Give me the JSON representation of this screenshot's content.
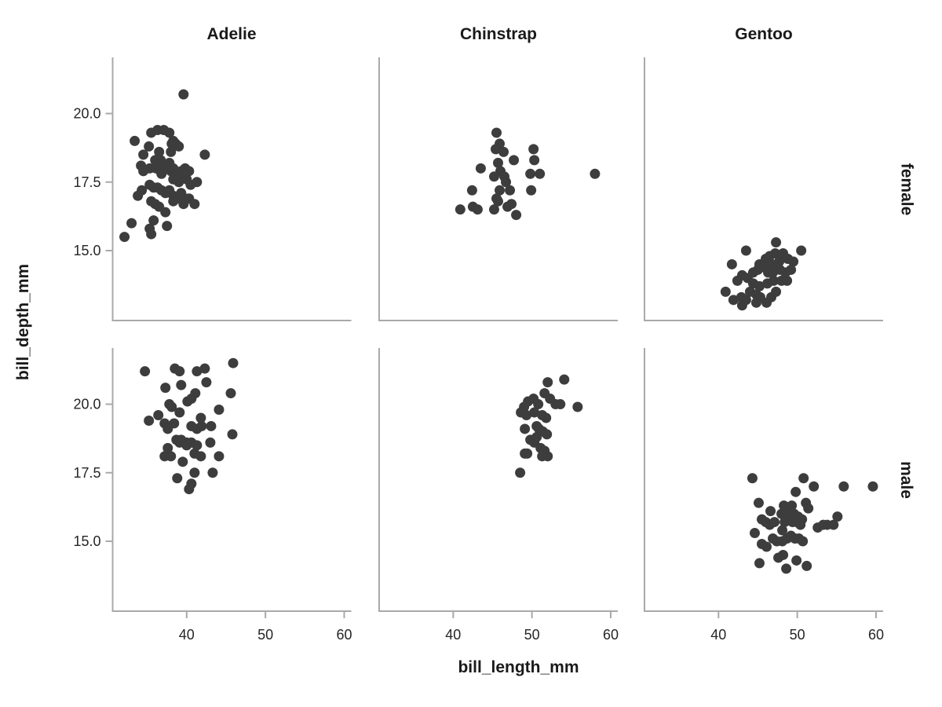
{
  "chart_data": {
    "type": "scatter",
    "title": "",
    "xlabel": "bill_length_mm",
    "ylabel": "bill_depth_mm",
    "facet_columns": [
      "Adelie",
      "Chinstrap",
      "Gentoo"
    ],
    "facet_rows": [
      "female",
      "male"
    ],
    "x_ticks": [
      40,
      50,
      60
    ],
    "x_tick_labels": [
      "40",
      "50",
      "60"
    ],
    "y_ticks": [
      15.0,
      17.5,
      20.0
    ],
    "y_tick_labels": [
      "15.0",
      "17.5",
      "20.0"
    ],
    "xlim": [
      30.6,
      60.9
    ],
    "ylim": [
      12.45,
      22.05
    ],
    "grid": "off",
    "legend": "none",
    "point_color": "#3d3d3d",
    "axis_color": "#a9a9a9",
    "panels": [
      {
        "species": "Adelie",
        "sex": "female",
        "points": [
          [
            39.6,
            20.7
          ],
          [
            33.4,
            19.0
          ],
          [
            35.5,
            19.3
          ],
          [
            36.3,
            19.4
          ],
          [
            37.1,
            19.4
          ],
          [
            37.8,
            19.3
          ],
          [
            35.2,
            18.8
          ],
          [
            38.3,
            19.0
          ],
          [
            38.6,
            18.9
          ],
          [
            39.0,
            18.8
          ],
          [
            34.5,
            18.5
          ],
          [
            36.5,
            18.6
          ],
          [
            36.0,
            18.3
          ],
          [
            36.7,
            18.3
          ],
          [
            38.1,
            18.9
          ],
          [
            38.0,
            18.6
          ],
          [
            37.8,
            18.2
          ],
          [
            42.3,
            18.5
          ],
          [
            34.2,
            18.1
          ],
          [
            34.5,
            17.9
          ],
          [
            35.3,
            18.0
          ],
          [
            36.1,
            18.0
          ],
          [
            36.7,
            17.9
          ],
          [
            37.1,
            18.0
          ],
          [
            36.8,
            17.8
          ],
          [
            38.0,
            17.9
          ],
          [
            38.3,
            18.0
          ],
          [
            38.6,
            17.7
          ],
          [
            39.3,
            17.9
          ],
          [
            39.8,
            18.0
          ],
          [
            40.3,
            17.9
          ],
          [
            39.5,
            17.7
          ],
          [
            40.0,
            17.6
          ],
          [
            39.0,
            17.5
          ],
          [
            38.3,
            17.6
          ],
          [
            41.3,
            17.5
          ],
          [
            40.5,
            17.4
          ],
          [
            33.8,
            17.0
          ],
          [
            34.3,
            17.2
          ],
          [
            35.3,
            17.4
          ],
          [
            35.8,
            17.3
          ],
          [
            36.3,
            17.3
          ],
          [
            36.8,
            17.2
          ],
          [
            37.3,
            17.1
          ],
          [
            37.8,
            17.2
          ],
          [
            38.3,
            17.0
          ],
          [
            38.8,
            16.9
          ],
          [
            39.3,
            17.1
          ],
          [
            39.8,
            16.9
          ],
          [
            40.3,
            16.9
          ],
          [
            41.0,
            16.7
          ],
          [
            39.6,
            16.7
          ],
          [
            38.3,
            16.8
          ],
          [
            37.3,
            16.4
          ],
          [
            36.5,
            16.6
          ],
          [
            36.0,
            16.7
          ],
          [
            35.5,
            16.8
          ],
          [
            33.0,
            16.0
          ],
          [
            35.3,
            15.8
          ],
          [
            35.8,
            16.1
          ],
          [
            37.5,
            15.9
          ],
          [
            35.5,
            15.6
          ],
          [
            32.1,
            15.5
          ]
        ]
      },
      {
        "species": "Chinstrap",
        "sex": "female",
        "points": [
          [
            45.5,
            19.3
          ],
          [
            45.9,
            18.9
          ],
          [
            45.4,
            18.7
          ],
          [
            46.4,
            18.6
          ],
          [
            50.2,
            18.7
          ],
          [
            50.3,
            18.3
          ],
          [
            47.7,
            18.3
          ],
          [
            43.5,
            18.0
          ],
          [
            45.7,
            18.2
          ],
          [
            46.0,
            17.9
          ],
          [
            45.2,
            17.7
          ],
          [
            46.5,
            17.7
          ],
          [
            46.7,
            17.5
          ],
          [
            49.8,
            17.8
          ],
          [
            51.0,
            17.8
          ],
          [
            58.0,
            17.8
          ],
          [
            45.9,
            17.2
          ],
          [
            47.2,
            17.2
          ],
          [
            49.9,
            17.2
          ],
          [
            42.4,
            17.2
          ],
          [
            45.5,
            16.9
          ],
          [
            45.7,
            16.8
          ],
          [
            40.9,
            16.5
          ],
          [
            42.5,
            16.6
          ],
          [
            43.1,
            16.5
          ],
          [
            45.2,
            16.5
          ],
          [
            46.9,
            16.6
          ],
          [
            47.4,
            16.7
          ],
          [
            48.0,
            16.3
          ]
        ]
      },
      {
        "species": "Gentoo",
        "sex": "female",
        "points": [
          [
            47.3,
            15.3
          ],
          [
            43.5,
            15.0
          ],
          [
            50.5,
            15.0
          ],
          [
            41.7,
            14.5
          ],
          [
            44.4,
            14.2
          ],
          [
            45.2,
            14.5
          ],
          [
            46.0,
            14.7
          ],
          [
            46.5,
            14.8
          ],
          [
            47.2,
            14.9
          ],
          [
            48.2,
            14.9
          ],
          [
            48.8,
            14.7
          ],
          [
            49.5,
            14.6
          ],
          [
            47.7,
            14.6
          ],
          [
            46.8,
            14.5
          ],
          [
            45.7,
            14.4
          ],
          [
            45.0,
            14.3
          ],
          [
            46.3,
            14.2
          ],
          [
            46.9,
            14.2
          ],
          [
            47.8,
            14.3
          ],
          [
            48.5,
            14.2
          ],
          [
            49.2,
            14.3
          ],
          [
            43.0,
            14.1
          ],
          [
            43.7,
            14.0
          ],
          [
            42.4,
            13.9
          ],
          [
            44.4,
            13.8
          ],
          [
            45.2,
            13.7
          ],
          [
            46.2,
            13.8
          ],
          [
            47.0,
            13.9
          ],
          [
            48.0,
            13.9
          ],
          [
            48.7,
            13.9
          ],
          [
            40.9,
            13.5
          ],
          [
            41.9,
            13.2
          ],
          [
            42.9,
            13.3
          ],
          [
            43.5,
            13.2
          ],
          [
            44.0,
            13.5
          ],
          [
            44.8,
            13.4
          ],
          [
            45.3,
            13.3
          ],
          [
            46.7,
            13.3
          ],
          [
            47.3,
            13.5
          ],
          [
            43.0,
            13.0
          ],
          [
            44.8,
            13.1
          ],
          [
            46.1,
            13.1
          ]
        ]
      },
      {
        "species": "Adelie",
        "sex": "male",
        "points": [
          [
            45.9,
            21.5
          ],
          [
            34.7,
            21.2
          ],
          [
            38.5,
            21.3
          ],
          [
            39.1,
            21.2
          ],
          [
            41.3,
            21.2
          ],
          [
            42.3,
            21.3
          ],
          [
            37.3,
            20.6
          ],
          [
            39.3,
            20.7
          ],
          [
            42.5,
            20.8
          ],
          [
            45.6,
            20.4
          ],
          [
            37.8,
            20.0
          ],
          [
            38.1,
            19.9
          ],
          [
            40.1,
            20.1
          ],
          [
            40.6,
            20.2
          ],
          [
            41.1,
            20.4
          ],
          [
            35.2,
            19.4
          ],
          [
            36.4,
            19.6
          ],
          [
            37.2,
            19.3
          ],
          [
            38.4,
            19.3
          ],
          [
            39.1,
            19.7
          ],
          [
            41.8,
            19.5
          ],
          [
            44.1,
            19.8
          ],
          [
            41.9,
            19.2
          ],
          [
            43.1,
            19.2
          ],
          [
            41.3,
            19.1
          ],
          [
            40.6,
            19.2
          ],
          [
            37.6,
            19.1
          ],
          [
            38.7,
            18.7
          ],
          [
            39.3,
            18.7
          ],
          [
            40.0,
            18.6
          ],
          [
            40.6,
            18.6
          ],
          [
            41.3,
            18.5
          ],
          [
            40.0,
            18.5
          ],
          [
            39.1,
            18.6
          ],
          [
            43.0,
            18.6
          ],
          [
            45.8,
            18.9
          ],
          [
            37.6,
            18.4
          ],
          [
            37.2,
            18.1
          ],
          [
            38.0,
            18.1
          ],
          [
            39.5,
            17.9
          ],
          [
            41.0,
            18.2
          ],
          [
            41.8,
            18.1
          ],
          [
            44.1,
            18.1
          ],
          [
            43.3,
            17.5
          ],
          [
            41.0,
            17.5
          ],
          [
            38.8,
            17.3
          ],
          [
            40.6,
            17.1
          ],
          [
            40.3,
            16.9
          ]
        ]
      },
      {
        "species": "Chinstrap",
        "sex": "male",
        "points": [
          [
            52.0,
            20.8
          ],
          [
            54.1,
            20.9
          ],
          [
            51.6,
            20.4
          ],
          [
            49.5,
            20.1
          ],
          [
            50.2,
            20.2
          ],
          [
            50.8,
            20.0
          ],
          [
            52.3,
            20.2
          ],
          [
            53.0,
            20.0
          ],
          [
            53.6,
            20.0
          ],
          [
            55.8,
            19.9
          ],
          [
            49.0,
            19.9
          ],
          [
            48.6,
            19.7
          ],
          [
            49.3,
            19.6
          ],
          [
            50.3,
            19.7
          ],
          [
            51.3,
            19.6
          ],
          [
            51.8,
            19.5
          ],
          [
            49.1,
            19.1
          ],
          [
            50.6,
            19.2
          ],
          [
            50.9,
            19.1
          ],
          [
            51.4,
            19.0
          ],
          [
            51.9,
            18.9
          ],
          [
            50.6,
            18.8
          ],
          [
            49.8,
            18.7
          ],
          [
            50.3,
            18.6
          ],
          [
            51.1,
            18.4
          ],
          [
            51.6,
            18.3
          ],
          [
            49.1,
            18.2
          ],
          [
            49.4,
            18.2
          ],
          [
            51.3,
            18.1
          ],
          [
            52.0,
            18.1
          ],
          [
            48.5,
            17.5
          ]
        ]
      },
      {
        "species": "Gentoo",
        "sex": "male",
        "points": [
          [
            44.3,
            17.3
          ],
          [
            50.8,
            17.3
          ],
          [
            52.1,
            17.0
          ],
          [
            55.9,
            17.0
          ],
          [
            59.6,
            17.0
          ],
          [
            49.8,
            16.8
          ],
          [
            45.1,
            16.4
          ],
          [
            48.3,
            16.3
          ],
          [
            49.3,
            16.3
          ],
          [
            51.1,
            16.4
          ],
          [
            51.4,
            16.2
          ],
          [
            46.6,
            16.1
          ],
          [
            48.0,
            16.0
          ],
          [
            48.6,
            16.1
          ],
          [
            49.1,
            15.9
          ],
          [
            49.6,
            16.0
          ],
          [
            50.1,
            15.9
          ],
          [
            50.6,
            15.8
          ],
          [
            45.5,
            15.8
          ],
          [
            46.0,
            15.7
          ],
          [
            46.5,
            15.6
          ],
          [
            47.1,
            15.7
          ],
          [
            48.1,
            15.4
          ],
          [
            48.4,
            15.7
          ],
          [
            49.4,
            15.7
          ],
          [
            49.9,
            15.7
          ],
          [
            50.4,
            15.6
          ],
          [
            52.6,
            15.5
          ],
          [
            53.3,
            15.6
          ],
          [
            53.8,
            15.6
          ],
          [
            54.6,
            15.6
          ],
          [
            55.1,
            15.9
          ],
          [
            44.6,
            15.3
          ],
          [
            45.2,
            14.2
          ],
          [
            45.5,
            14.9
          ],
          [
            46.1,
            14.8
          ],
          [
            46.9,
            15.1
          ],
          [
            47.4,
            15.0
          ],
          [
            48.1,
            15.0
          ],
          [
            48.7,
            15.1
          ],
          [
            49.2,
            15.2
          ],
          [
            49.7,
            15.1
          ],
          [
            50.2,
            15.1
          ],
          [
            50.7,
            15.0
          ],
          [
            47.6,
            14.4
          ],
          [
            48.2,
            14.5
          ],
          [
            49.9,
            14.3
          ],
          [
            51.2,
            14.1
          ],
          [
            48.6,
            14.0
          ]
        ]
      }
    ]
  }
}
